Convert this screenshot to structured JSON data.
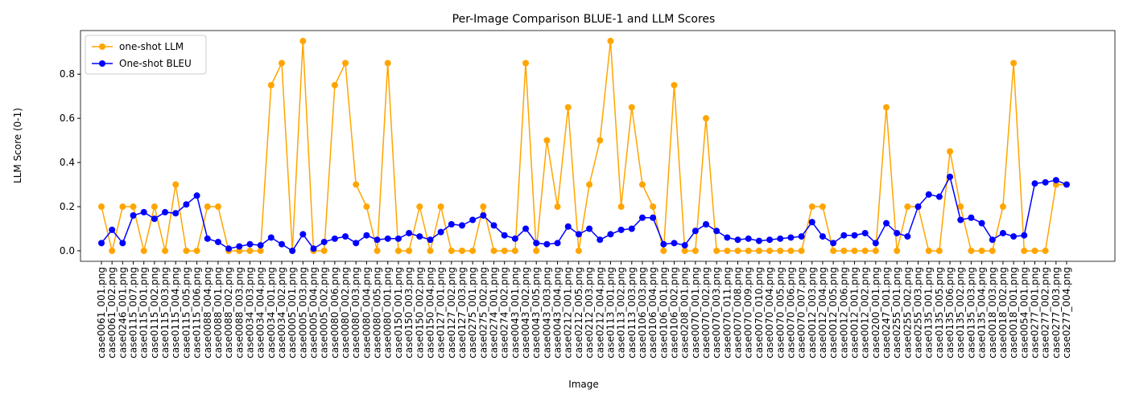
{
  "chart_data": {
    "type": "line",
    "title": "Per-Image Comparison BLUE-1 and LLM Scores",
    "x_label": "Image",
    "y_label": "LLM Score (0-1)",
    "categories": [
      "case0061_001.png",
      "case0061_002.png",
      "case0246_001.png",
      "case0115_007.png",
      "case0115_001.png",
      "case0115_002.png",
      "case0115_003.png",
      "case0115_004.png",
      "case0115_005.png",
      "case0115_006.png",
      "case0088_004.png",
      "case0088_001.png",
      "case0088_002.png",
      "case0088_003.png",
      "case0034_003.png",
      "case0034_004.png",
      "case0034_001.png",
      "case0034_002.png",
      "case0005_001.png",
      "case0005_003.png",
      "case0005_004.png",
      "case0005_002.png",
      "case0080_006.png",
      "case0080_002.png",
      "case0080_003.png",
      "case0080_004.png",
      "case0080_005.png",
      "case0080_001.png",
      "case0150_001.png",
      "case0150_003.png",
      "case0150_002.png",
      "case0150_004.png",
      "case0127_001.png",
      "case0127_002.png",
      "case0127_003.png",
      "case0275_001.png",
      "case0275_002.png",
      "case0274_001.png",
      "case0274_002.png",
      "case0043_001.png",
      "case0043_002.png",
      "case0043_005.png",
      "case0043_003.png",
      "case0043_004.png",
      "case0212_001.png",
      "case0212_005.png",
      "case0212_003.png",
      "case0212_004.png",
      "case0113_001.png",
      "case0113_002.png",
      "case0113_003.png",
      "case0106_003.png",
      "case0106_004.png",
      "case0106_001.png",
      "case0106_002.png",
      "case0208_001.png",
      "case0070_001.png",
      "case0070_002.png",
      "case0070_003.png",
      "case0070_011.png",
      "case0070_008.png",
      "case0070_009.png",
      "case0070_010.png",
      "case0070_004.png",
      "case0070_005.png",
      "case0070_006.png",
      "case0070_007.png",
      "case0012_003.png",
      "case0012_004.png",
      "case0012_005.png",
      "case0012_006.png",
      "case0012_001.png",
      "case0012_002.png",
      "case0200_001.png",
      "case0247_001.png",
      "case0255_001.png",
      "case0255_002.png",
      "case0255_003.png",
      "case0135_001.png",
      "case0135_005.png",
      "case0135_006.png",
      "case0135_002.png",
      "case0135_003.png",
      "case0135_004.png",
      "case0018_003.png",
      "case0018_002.png",
      "case0018_001.png",
      "case0054_001.png",
      "case0277_001.png",
      "case0277_002.png",
      "case0277_003.png",
      "case0277_004.png"
    ],
    "series": [
      {
        "name": "one-shot LLM",
        "color": "#ffa500",
        "values": [
          0.2,
          0,
          0.2,
          0.2,
          0,
          0.2,
          0,
          0.3,
          0,
          0,
          0.2,
          0.2,
          0,
          0,
          0,
          0,
          0.75,
          0.85,
          0,
          0.95,
          0,
          0,
          0.75,
          0.85,
          0.3,
          0.2,
          0,
          0.85,
          0,
          0,
          0.2,
          0,
          0.2,
          0,
          0,
          0,
          0.2,
          0,
          0,
          0,
          0.85,
          0,
          0.5,
          0.2,
          0.65,
          0,
          0.3,
          0.5,
          0.95,
          0.2,
          0.65,
          0.3,
          0.2,
          0,
          0.75,
          0,
          0,
          0.6,
          0,
          0,
          0,
          0,
          0,
          0,
          0,
          0,
          0,
          0.2,
          0.2,
          0,
          0,
          0,
          0,
          0,
          0.65,
          0,
          0.2,
          0.2,
          0,
          0,
          0.45,
          0.2,
          0,
          0,
          0,
          0.2,
          0.85,
          0,
          0,
          0,
          0.3,
          0.3
        ]
      },
      {
        "name": "One-shot BLEU",
        "color": "#0000ff",
        "values": [
          0.035,
          0.095,
          0.035,
          0.16,
          0.175,
          0.145,
          0.175,
          0.17,
          0.21,
          0.25,
          0.055,
          0.04,
          0.01,
          0.02,
          0.03,
          0.025,
          0.06,
          0.03,
          0,
          0.075,
          0.01,
          0.04,
          0.055,
          0.065,
          0.035,
          0.07,
          0.05,
          0.055,
          0.055,
          0.08,
          0.065,
          0.05,
          0.085,
          0.12,
          0.115,
          0.14,
          0.16,
          0.115,
          0.07,
          0.055,
          0.1,
          0.035,
          0.03,
          0.035,
          0.11,
          0.075,
          0.1,
          0.05,
          0.075,
          0.095,
          0.1,
          0.15,
          0.15,
          0.03,
          0.035,
          0.025,
          0.09,
          0.12,
          0.09,
          0.06,
          0.05,
          0.055,
          0.045,
          0.05,
          0.055,
          0.06,
          0.065,
          0.13,
          0.065,
          0.035,
          0.07,
          0.07,
          0.08,
          0.035,
          0.125,
          0.08,
          0.065,
          0.2,
          0.255,
          0.245,
          0.335,
          0.14,
          0.15,
          0.125,
          0.05,
          0.08,
          0.065,
          0.07,
          0.305,
          0.31,
          0.32,
          0.3
        ]
      }
    ],
    "ylim": [
      -0.0475,
      0.9975
    ],
    "yticks": [
      {
        "value": 0,
        "label": "0.0"
      },
      0.2,
      0.4,
      0.6,
      0.8
    ],
    "legend": "upper left",
    "grid": false
  }
}
